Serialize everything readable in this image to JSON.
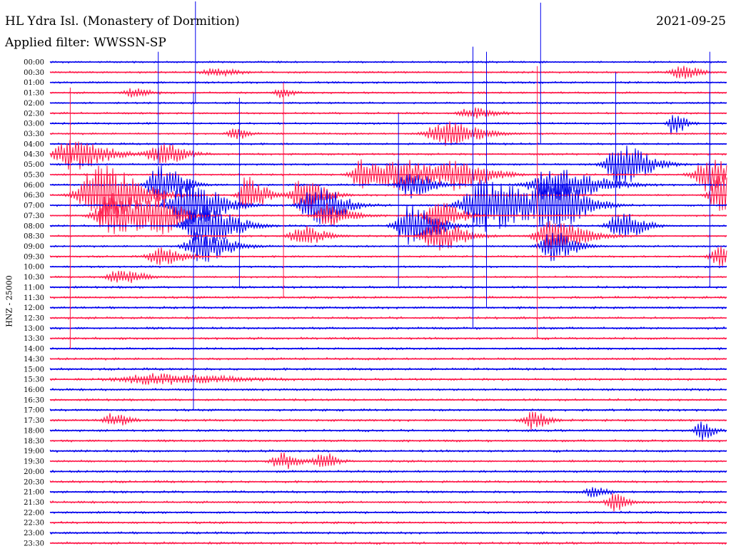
{
  "header": {
    "station": "HL Ydra Isl. (Monastery of Dormition)",
    "filter": "Applied filter: WWSSN-SP",
    "date": "2021-09-25",
    "side_label": "HNZ - 25000"
  },
  "colors": {
    "trace_a": "#0000ee",
    "trace_b": "#ff1a4a",
    "background": "#ffffff",
    "text": "#000000"
  },
  "chart_data": {
    "type": "line",
    "title": "HL Ydra Isl. (Monastery of Dormition)",
    "subtitle": "Applied filter: WWSSN-SP",
    "date": "2021-09-25",
    "ylabel": "HNZ - 25000",
    "row_labels": [
      "00:00",
      "00:30",
      "01:00",
      "01:30",
      "02:00",
      "02:30",
      "03:00",
      "03:30",
      "04:00",
      "04:30",
      "05:00",
      "05:30",
      "06:00",
      "06:30",
      "07:00",
      "07:30",
      "08:00",
      "08:30",
      "09:00",
      "09:30",
      "10:00",
      "10:30",
      "11:00",
      "11:30",
      "12:00",
      "12:30",
      "13:00",
      "13:30",
      "14:00",
      "14:30",
      "15:00",
      "15:30",
      "16:00",
      "16:30",
      "17:00",
      "17:30",
      "18:00",
      "18:30",
      "19:00",
      "19:30",
      "20:00",
      "20:30",
      "21:00",
      "21:30",
      "22:00",
      "22:30",
      "23:00",
      "23:30"
    ],
    "row_colors": [
      "blue",
      "red"
    ],
    "x_range_minutes": [
      0,
      30
    ],
    "grid": false,
    "legend": "none",
    "events": [
      {
        "row": 1,
        "t": 0.93,
        "amp": 0.7,
        "w": 0.015
      },
      {
        "row": 1,
        "t": 0.24,
        "amp": 0.35,
        "w": 0.02
      },
      {
        "row": 3,
        "t": 0.34,
        "amp": 0.5,
        "w": 0.01
      },
      {
        "row": 3,
        "t": 0.12,
        "amp": 0.4,
        "w": 0.015
      },
      {
        "row": 5,
        "t": 0.62,
        "amp": 0.5,
        "w": 0.02
      },
      {
        "row": 6,
        "t": 0.92,
        "amp": 1.2,
        "w": 0.01
      },
      {
        "row": 7,
        "t": 0.58,
        "amp": 1.2,
        "w": 0.03
      },
      {
        "row": 7,
        "t": 0.27,
        "amp": 0.7,
        "w": 0.01
      },
      {
        "row": 9,
        "t": 0.03,
        "amp": 1.5,
        "w": 0.03
      },
      {
        "row": 9,
        "t": 0.16,
        "amp": 1.2,
        "w": 0.02
      },
      {
        "row": 10,
        "t": 0.84,
        "amp": 2.0,
        "w": 0.025
      },
      {
        "row": 11,
        "t": 0.46,
        "amp": 1.5,
        "w": 0.02
      },
      {
        "row": 11,
        "t": 0.52,
        "amp": 1.4,
        "w": 0.03
      },
      {
        "row": 11,
        "t": 0.6,
        "amp": 1.3,
        "w": 0.03
      },
      {
        "row": 11,
        "t": 0.97,
        "amp": 1.6,
        "w": 0.025
      },
      {
        "row": 12,
        "t": 0.16,
        "amp": 2.0,
        "w": 0.02
      },
      {
        "row": 12,
        "t": 0.53,
        "amp": 1.3,
        "w": 0.02
      },
      {
        "row": 12,
        "t": 0.74,
        "amp": 1.6,
        "w": 0.04
      },
      {
        "row": 13,
        "t": 0.07,
        "amp": 3.0,
        "w": 0.035
      },
      {
        "row": 13,
        "t": 0.29,
        "amp": 2.0,
        "w": 0.015
      },
      {
        "row": 13,
        "t": 0.37,
        "amp": 1.6,
        "w": 0.02
      },
      {
        "row": 13,
        "t": 0.99,
        "amp": 2.0,
        "w": 0.02
      },
      {
        "row": 14,
        "t": 0.2,
        "amp": 2.2,
        "w": 0.03
      },
      {
        "row": 14,
        "t": 0.39,
        "amp": 2.0,
        "w": 0.025
      },
      {
        "row": 14,
        "t": 0.64,
        "amp": 2.5,
        "w": 0.04
      },
      {
        "row": 14,
        "t": 0.74,
        "amp": 2.2,
        "w": 0.03
      },
      {
        "row": 15,
        "t": 0.09,
        "amp": 2.2,
        "w": 0.03
      },
      {
        "row": 15,
        "t": 0.16,
        "amp": 1.6,
        "w": 0.02
      },
      {
        "row": 15,
        "t": 0.57,
        "amp": 1.4,
        "w": 0.02
      },
      {
        "row": 15,
        "t": 0.41,
        "amp": 1.2,
        "w": 0.02
      },
      {
        "row": 16,
        "t": 0.22,
        "amp": 2.0,
        "w": 0.03
      },
      {
        "row": 16,
        "t": 0.53,
        "amp": 2.0,
        "w": 0.025
      },
      {
        "row": 16,
        "t": 0.84,
        "amp": 1.4,
        "w": 0.02
      },
      {
        "row": 17,
        "t": 0.57,
        "amp": 1.4,
        "w": 0.025
      },
      {
        "row": 17,
        "t": 0.74,
        "amp": 1.4,
        "w": 0.03
      },
      {
        "row": 17,
        "t": 0.37,
        "amp": 1.0,
        "w": 0.02
      },
      {
        "row": 18,
        "t": 0.22,
        "amp": 1.6,
        "w": 0.025
      },
      {
        "row": 18,
        "t": 0.74,
        "amp": 1.5,
        "w": 0.02
      },
      {
        "row": 19,
        "t": 0.16,
        "amp": 0.9,
        "w": 0.02
      },
      {
        "row": 19,
        "t": 0.99,
        "amp": 1.0,
        "w": 0.02
      },
      {
        "row": 21,
        "t": 0.1,
        "amp": 0.7,
        "w": 0.02
      },
      {
        "row": 31,
        "t": 0.15,
        "amp": 0.5,
        "w": 0.06
      },
      {
        "row": 35,
        "t": 0.71,
        "amp": 0.8,
        "w": 0.015
      },
      {
        "row": 35,
        "t": 0.09,
        "amp": 0.6,
        "w": 0.015
      },
      {
        "row": 36,
        "t": 0.96,
        "amp": 1.0,
        "w": 0.01
      },
      {
        "row": 39,
        "t": 0.34,
        "amp": 0.8,
        "w": 0.015
      },
      {
        "row": 39,
        "t": 0.4,
        "amp": 0.9,
        "w": 0.012
      },
      {
        "row": 43,
        "t": 0.83,
        "amp": 0.9,
        "w": 0.012
      },
      {
        "row": 42,
        "t": 0.8,
        "amp": 0.5,
        "w": 0.012
      }
    ],
    "spikes": [
      {
        "row": 0,
        "t": 0.215,
        "up": 6.5,
        "down": 4.0
      },
      {
        "row": 1,
        "t": 0.72,
        "up": 0.6,
        "down": 26.0
      },
      {
        "row": 0,
        "t": 0.725,
        "up": 5.8,
        "down": 8.0
      },
      {
        "row": 0,
        "t": 0.625,
        "up": 1.5,
        "down": 26.0
      },
      {
        "row": 0,
        "t": 0.645,
        "up": 1.0,
        "down": 24.0
      },
      {
        "row": 2,
        "t": 0.16,
        "up": 3.0,
        "down": 8.0
      },
      {
        "row": 3,
        "t": 0.03,
        "up": 0.5,
        "down": 25.0
      },
      {
        "row": 3,
        "t": 0.345,
        "up": 1.0,
        "down": 20.0
      },
      {
        "row": 4,
        "t": 0.28,
        "up": 0.5,
        "down": 18.0
      },
      {
        "row": 2,
        "t": 0.836,
        "up": 1.0,
        "down": 14.0
      },
      {
        "row": 6,
        "t": 0.515,
        "up": 1.0,
        "down": 16.0
      },
      {
        "row": 4,
        "t": 0.975,
        "up": 1.0,
        "down": 18.0
      },
      {
        "row": 0,
        "t": 0.975,
        "up": 1.0,
        "down": 10.0
      },
      {
        "row": 4,
        "t": 0.212,
        "up": 1.0,
        "down": 30.0
      }
    ]
  }
}
